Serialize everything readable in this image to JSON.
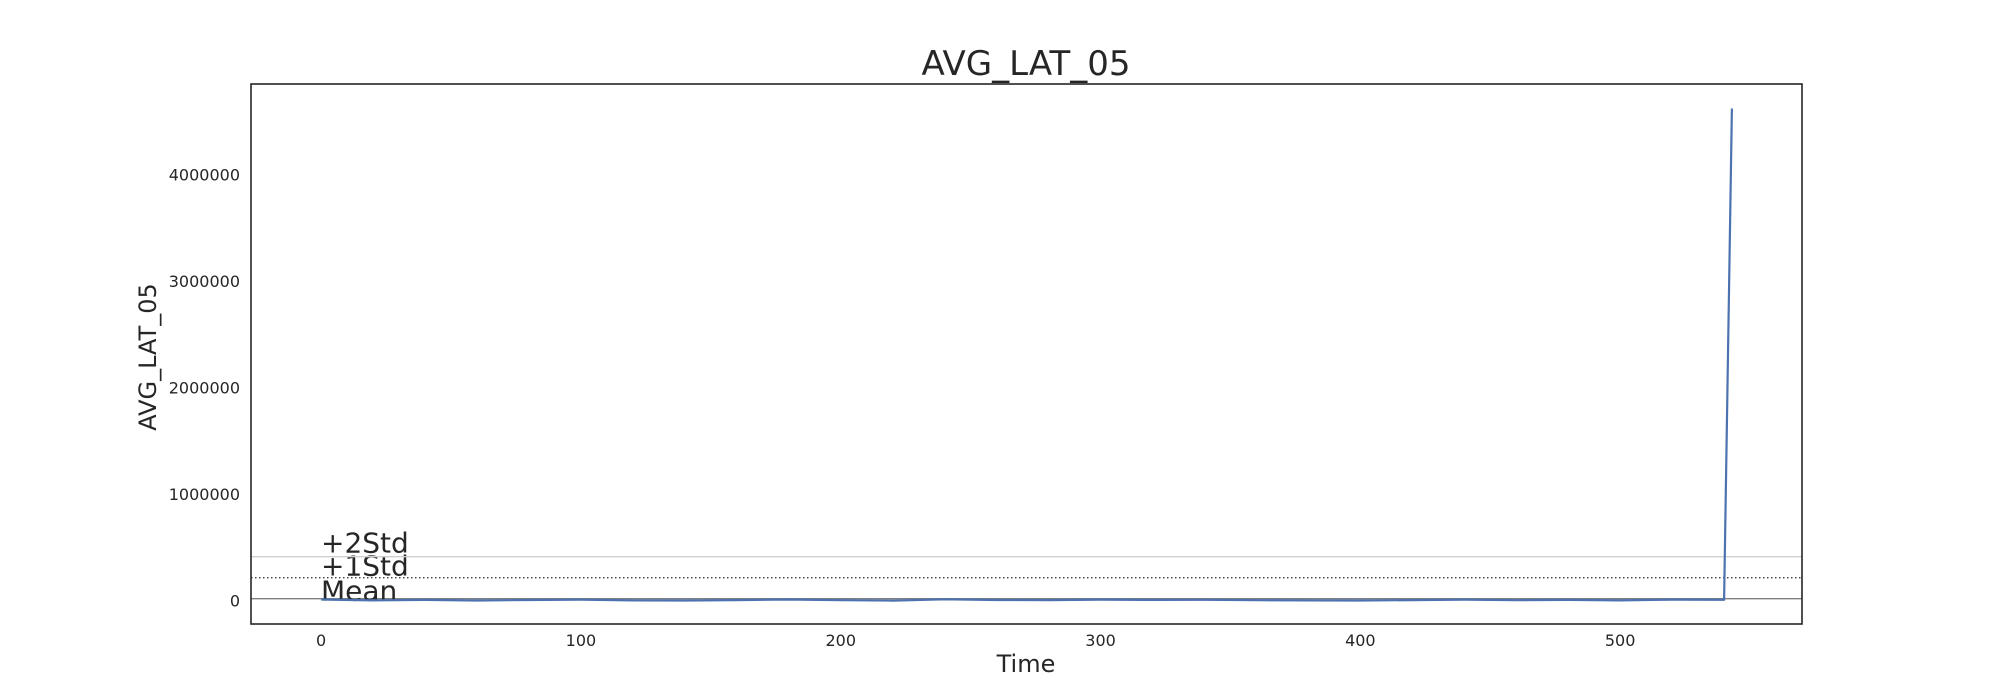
{
  "chart_data": {
    "type": "line",
    "title": "AVG_LAT_05",
    "xlabel": "Time",
    "ylabel": "AVG_LAT_05",
    "xlim": [
      -27,
      570
    ],
    "ylim": [
      -220000,
      4850000
    ],
    "x_ticks": [
      0,
      100,
      200,
      300,
      400,
      500
    ],
    "x_tick_labels": [
      "0",
      "100",
      "200",
      "300",
      "400",
      "500"
    ],
    "y_ticks": [
      0,
      1000000,
      2000000,
      3000000,
      4000000
    ],
    "y_tick_labels": [
      "0",
      "1000000",
      "2000000",
      "3000000",
      "4000000"
    ],
    "grid": false,
    "series": [
      {
        "color": "#4c72b0",
        "x": [
          0,
          20,
          40,
          60,
          80,
          100,
          120,
          140,
          160,
          180,
          200,
          220,
          240,
          260,
          280,
          300,
          320,
          340,
          360,
          380,
          400,
          420,
          440,
          460,
          480,
          500,
          520,
          540,
          543
        ],
        "y": [
          10000,
          2000,
          6000,
          1000,
          5000,
          8000,
          2000,
          1000,
          4000,
          10000,
          3000,
          0,
          12000,
          5000,
          4000,
          9000,
          6000,
          7000,
          3000,
          2000,
          1000,
          4000,
          8000,
          3000,
          6000,
          2000,
          9000,
          7000,
          4620000
        ]
      }
    ],
    "reference_lines": [
      {
        "label": "Mean",
        "y": 18000,
        "style": "solid",
        "color": "#808080"
      },
      {
        "label": "+1Std",
        "y": 215000,
        "style": "dotted",
        "color": "#404040"
      },
      {
        "label": "+2Std",
        "y": 412000,
        "style": "solid",
        "color": "#d0d0d0"
      }
    ]
  }
}
